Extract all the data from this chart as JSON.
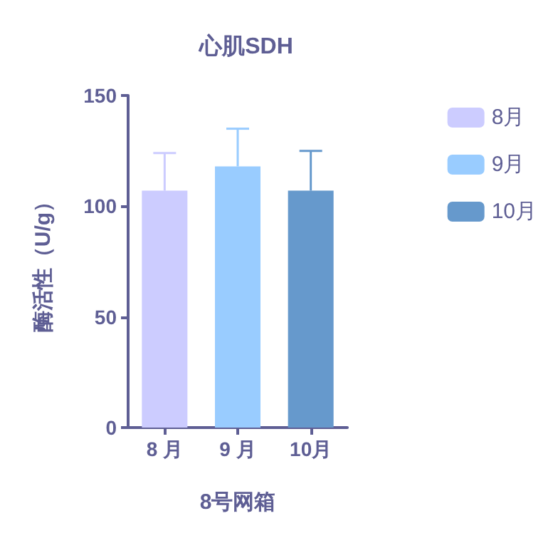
{
  "chart_data": {
    "type": "bar",
    "title": "心肌SDH",
    "xlabel": "8号网箱",
    "ylabel": "酶活性（U/g）",
    "categories": [
      "8 月",
      "9 月",
      "10月"
    ],
    "series": [
      {
        "name": "8月",
        "color": "#ccccff",
        "values": [
          107,
          null,
          null
        ],
        "errors": [
          [
            107,
            124
          ],
          null,
          null
        ]
      },
      {
        "name": "9月",
        "color": "#99ccff",
        "values": [
          null,
          118,
          null
        ],
        "errors": [
          null,
          [
            118,
            135
          ],
          null
        ]
      },
      {
        "name": "10月",
        "color": "#6699cc",
        "values": [
          null,
          null,
          107
        ],
        "errors": [
          null,
          null,
          [
            107,
            125
          ]
        ]
      }
    ],
    "ylim": [
      0,
      150
    ],
    "yticks": [
      0,
      50,
      100,
      150
    ],
    "grid": false,
    "legend": "right"
  }
}
